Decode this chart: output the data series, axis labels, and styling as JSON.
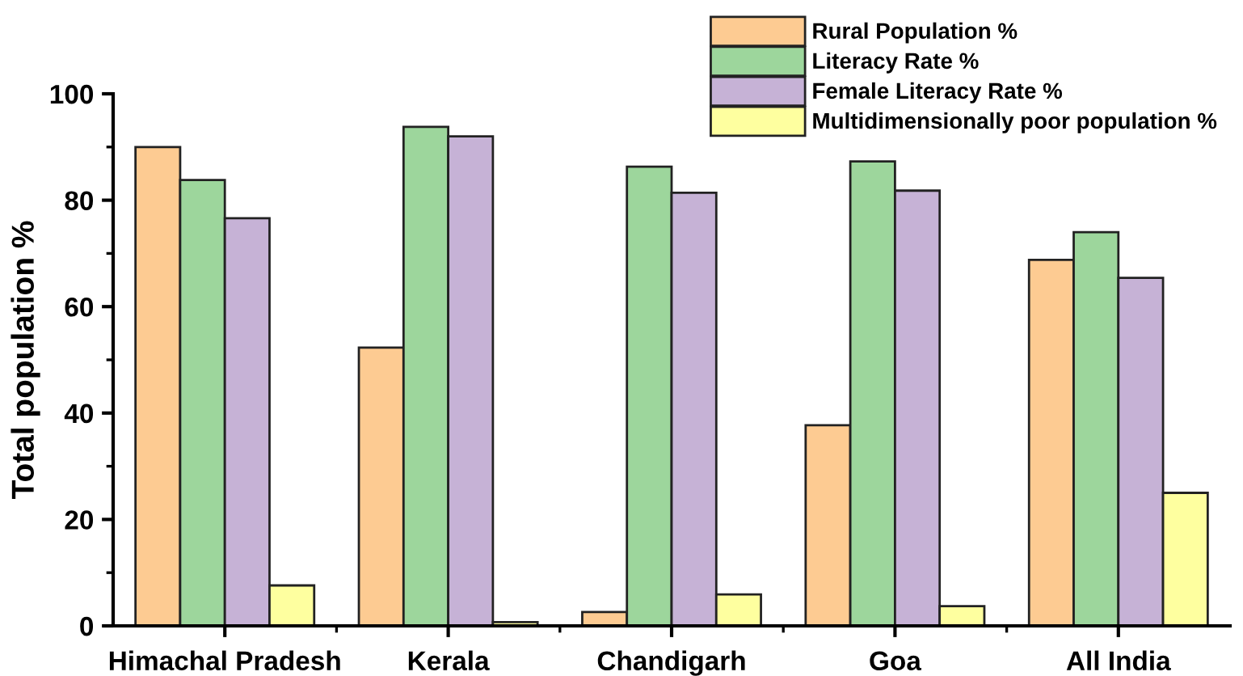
{
  "chart_data": {
    "type": "bar",
    "ylabel": "Total population %",
    "categories": [
      "Himachal Pradesh",
      "Kerala",
      "Chandigarh",
      "Goa",
      "All India"
    ],
    "series": [
      {
        "name": "Rural Population %",
        "color": "#fdcb92",
        "values": [
          90.0,
          52.3,
          2.6,
          37.7,
          68.8
        ]
      },
      {
        "name": "Literacy Rate %",
        "color": "#9dd69c",
        "values": [
          83.8,
          93.8,
          86.3,
          87.3,
          74.0
        ]
      },
      {
        "name": "Female Literacy Rate %",
        "color": "#c6b2d6",
        "values": [
          76.6,
          92.0,
          81.4,
          81.8,
          65.4
        ]
      },
      {
        "name": "Multidimensionally poor population %",
        "color": "#feff9f",
        "values": [
          7.6,
          0.7,
          5.9,
          3.7,
          25.0
        ]
      }
    ],
    "ylim": [
      0,
      100
    ],
    "yticks": [
      0,
      {
        "value": 10,
        "label": null
      },
      20,
      {
        "value": 30,
        "label": null
      },
      40,
      {
        "value": 50,
        "label": null
      },
      60,
      {
        "value": 70,
        "label": null
      },
      80,
      {
        "value": 90,
        "label": null
      },
      100
    ],
    "grid": false,
    "legend": "top right"
  }
}
